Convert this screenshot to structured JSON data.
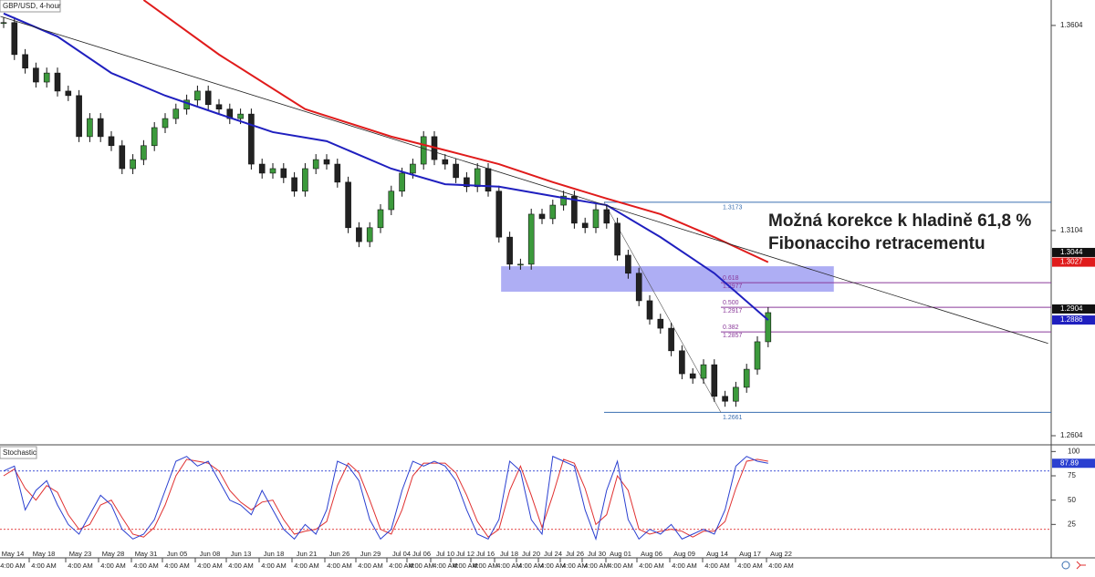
{
  "chart_data": {
    "type": "candlestick",
    "title": "GBP/USD, 4-hour",
    "close": [
      1.3611,
      1.3533,
      1.35,
      1.3466,
      1.3488,
      1.3444,
      1.3433,
      1.3333,
      1.3377,
      1.3333,
      1.3311,
      1.3255,
      1.3277,
      1.3311,
      1.3355,
      1.3377,
      1.34,
      1.3422,
      1.3444,
      1.3411,
      1.34,
      1.3377,
      1.3388,
      1.3266,
      1.3244,
      1.3255,
      1.3233,
      1.32,
      1.3255,
      1.3277,
      1.3266,
      1.3222,
      1.3111,
      1.3077,
      1.3111,
      1.3155,
      1.32,
      1.3244,
      1.3266,
      1.3333,
      1.3277,
      1.3266,
      1.3233,
      1.3211,
      1.3255,
      1.32,
      1.3088,
      1.3022,
      1.3022,
      1.3144,
      1.3133,
      1.3166,
      1.3188,
      1.3122,
      1.3111,
      1.3155,
      1.3122,
      1.3044,
      1.3,
      1.2933,
      1.2888,
      1.2866,
      1.2811,
      1.2755,
      1.2744,
      1.2777,
      1.27,
      1.2688,
      1.2722,
      1.2766,
      1.2833,
      1.2904
    ],
    "up_color": "#3c9a3c",
    "down_color": "#222222",
    "ylim": [
      1.2584,
      1.3666
    ],
    "yticks": [
      1.3604,
      1.3104,
      1.2604
    ],
    "moving_averages": [
      {
        "color": "#1f1fbf",
        "x": [
          0,
          5,
          10,
          15,
          20,
          25,
          30,
          36,
          41,
          46,
          51,
          56,
          61,
          66,
          71
        ],
        "values": [
          1.3633,
          1.3577,
          1.3488,
          1.3433,
          1.3388,
          1.3344,
          1.3322,
          1.3255,
          1.3217,
          1.3211,
          1.3188,
          1.3166,
          1.3088,
          1.3,
          1.2886
        ],
        "last_label": "1.2886"
      },
      {
        "color": "#e01b1b",
        "x": [
          13,
          20,
          28,
          36,
          41,
          46,
          51,
          56,
          61,
          66,
          71
        ],
        "values": [
          1.3666,
          1.3533,
          1.34,
          1.3333,
          1.33,
          1.3266,
          1.3222,
          1.3182,
          1.3144,
          1.3088,
          1.3027
        ],
        "last_label": "1.3027"
      }
    ],
    "last_price_labels": [
      "1.3044",
      "1.2904"
    ],
    "trendline": {
      "x": [
        -0.3,
        97
      ],
      "values": [
        1.3626,
        1.2829
      ]
    },
    "zone": {
      "x": [
        46.2,
        77.1
      ],
      "values": [
        1.2955,
        1.3017
      ],
      "color": "#8c8cf0"
    },
    "fibonacci": [
      {
        "price": 1.3173,
        "label": "1.3173",
        "color": "#3a6fb0"
      },
      {
        "price": 1.2977,
        "ratio": "0.618",
        "label": "1.2977",
        "color": "#8a3a9a"
      },
      {
        "price": 1.2917,
        "ratio": "0.500",
        "label": "1.2917",
        "color": "#8a3a9a"
      },
      {
        "price": 1.2857,
        "ratio": "0.382",
        "label": "1.2857",
        "color": "#8a3a9a"
      },
      {
        "price": 1.2661,
        "label": "1.2661",
        "color": "#3a6fb0"
      }
    ],
    "annotation": [
      "Možná korekce k hladině 61,8 %",
      "Fibonacciho retracementu"
    ],
    "stochastic": {
      "title": "Stochastic",
      "ylim": [
        0,
        105
      ],
      "yticks": [
        100,
        75,
        50,
        25
      ],
      "levels": [
        80,
        20
      ],
      "series": [
        {
          "name": "%K",
          "color": "#2a3fd0",
          "values": [
            80,
            85,
            40,
            60,
            70,
            45,
            25,
            15,
            35,
            55,
            45,
            20,
            10,
            15,
            30,
            60,
            90,
            95,
            85,
            90,
            70,
            50,
            45,
            35,
            60,
            40,
            20,
            10,
            25,
            15,
            40,
            90,
            85,
            70,
            30,
            10,
            20,
            60,
            90,
            85,
            90,
            85,
            70,
            40,
            15,
            10,
            30,
            90,
            80,
            30,
            15,
            95,
            90,
            85,
            40,
            10,
            60,
            90,
            30,
            10,
            20,
            15,
            25,
            10,
            15,
            20,
            15,
            40,
            85,
            95,
            90,
            87.89
          ]
        },
        {
          "name": "%D",
          "color": "#e03030",
          "values": [
            75,
            82,
            62,
            50,
            65,
            58,
            35,
            20,
            25,
            45,
            50,
            32,
            15,
            12,
            22,
            45,
            75,
            92,
            90,
            88,
            80,
            60,
            48,
            40,
            48,
            50,
            30,
            15,
            18,
            20,
            28,
            65,
            88,
            78,
            50,
            20,
            15,
            40,
            75,
            88,
            88,
            88,
            78,
            55,
            28,
            12,
            20,
            60,
            85,
            55,
            22,
            55,
            92,
            88,
            62,
            25,
            35,
            75,
            60,
            20,
            15,
            18,
            20,
            18,
            12,
            18,
            18,
            28,
            62,
            90,
            92,
            90
          ]
        }
      ],
      "last_label": "87.89"
    },
    "categories": [
      "May 14",
      "May 18",
      "May 23",
      "May 28",
      "May 31",
      "Jun 05",
      "Jun 08",
      "Jun 13",
      "Jun 18",
      "Jun 21",
      "Jun 26",
      "Jun 29",
      "Jul 04",
      "Jul 06",
      "Jul 10",
      "Jul 12",
      "Jul 16",
      "Jul 18",
      "Jul 20",
      "Jul 24",
      "Jul 26",
      "Jul 30",
      "Aug 01",
      "Aug 06",
      "Aug 09",
      "Aug 14",
      "Aug 17",
      "Aug 22"
    ],
    "time_label": "4:00 AM"
  }
}
